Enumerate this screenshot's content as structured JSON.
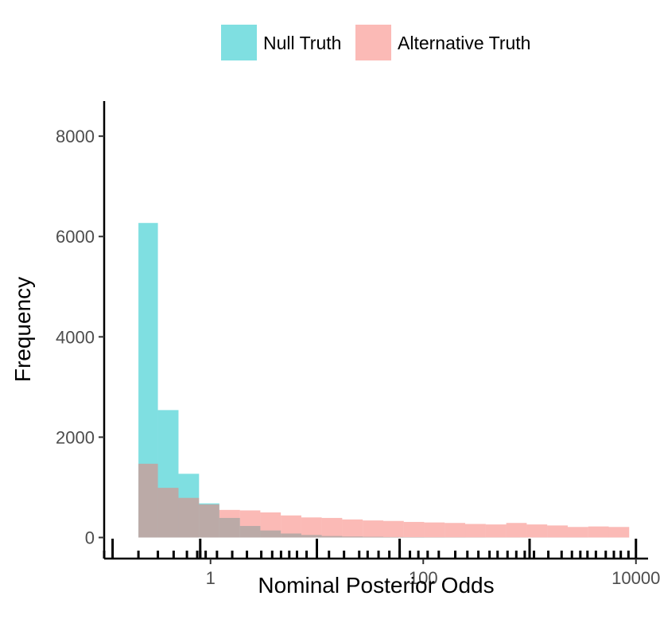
{
  "chart_data": {
    "type": "histogram",
    "xlabel": "Nominal Posterior Odds",
    "ylabel": "Frequency",
    "x_scale": "log10",
    "xlim": [
      0.1,
      13000
    ],
    "ylim": [
      -420,
      8700
    ],
    "x_ticks": [
      1,
      100,
      10000
    ],
    "x_tick_labels": [
      "1",
      "100",
      "10000"
    ],
    "y_ticks": [
      0,
      2000,
      4000,
      6000,
      8000
    ],
    "y_tick_labels": [
      "0",
      "2000",
      "4000",
      "6000",
      "8000"
    ],
    "bin_edges": [
      0.21,
      0.32,
      0.5,
      0.78,
      1.21,
      1.89,
      2.94,
      4.58,
      7.14,
      11.1,
      17.3,
      27,
      42.1,
      65.6,
      102,
      159,
      248,
      387,
      603,
      940,
      1465,
      2283,
      3557,
      5543,
      8640
    ],
    "series": [
      {
        "name": "Null Truth",
        "color": "#00BFC4",
        "values": [
          6270,
          2540,
          1270,
          680,
          390,
          230,
          140,
          80,
          50,
          30,
          20,
          15,
          10,
          8,
          6,
          5,
          4,
          3,
          3,
          2,
          2,
          2,
          1,
          1
        ]
      },
      {
        "name": "Alternative Truth",
        "color": "#F8766D",
        "values": [
          1470,
          990,
          790,
          660,
          550,
          540,
          500,
          440,
          400,
          390,
          360,
          340,
          330,
          310,
          300,
          290,
          270,
          260,
          290,
          260,
          240,
          210,
          220,
          210
        ]
      }
    ],
    "legend": {
      "position": "top",
      "entries": [
        "Null Truth",
        "Alternative Truth"
      ]
    },
    "grid": false,
    "rug": {
      "x": [
        0.1,
        0.21,
        0.32,
        0.45,
        0.6,
        0.75,
        0.8,
        0.9,
        1.15,
        1.6,
        2.2,
        3.0,
        3.8,
        4.6,
        5.5,
        6.5,
        8.0,
        10,
        13,
        18,
        25,
        30,
        38,
        48,
        60,
        75,
        90,
        110,
        140,
        200,
        260,
        330,
        420,
        500,
        620,
        750,
        900,
        1100,
        1500,
        2000,
        2500,
        3000,
        3500,
        4200,
        5200,
        6200,
        7200,
        8500
      ],
      "long": [
        0.12,
        0.8,
        10,
        60,
        1000,
        10000
      ]
    }
  }
}
